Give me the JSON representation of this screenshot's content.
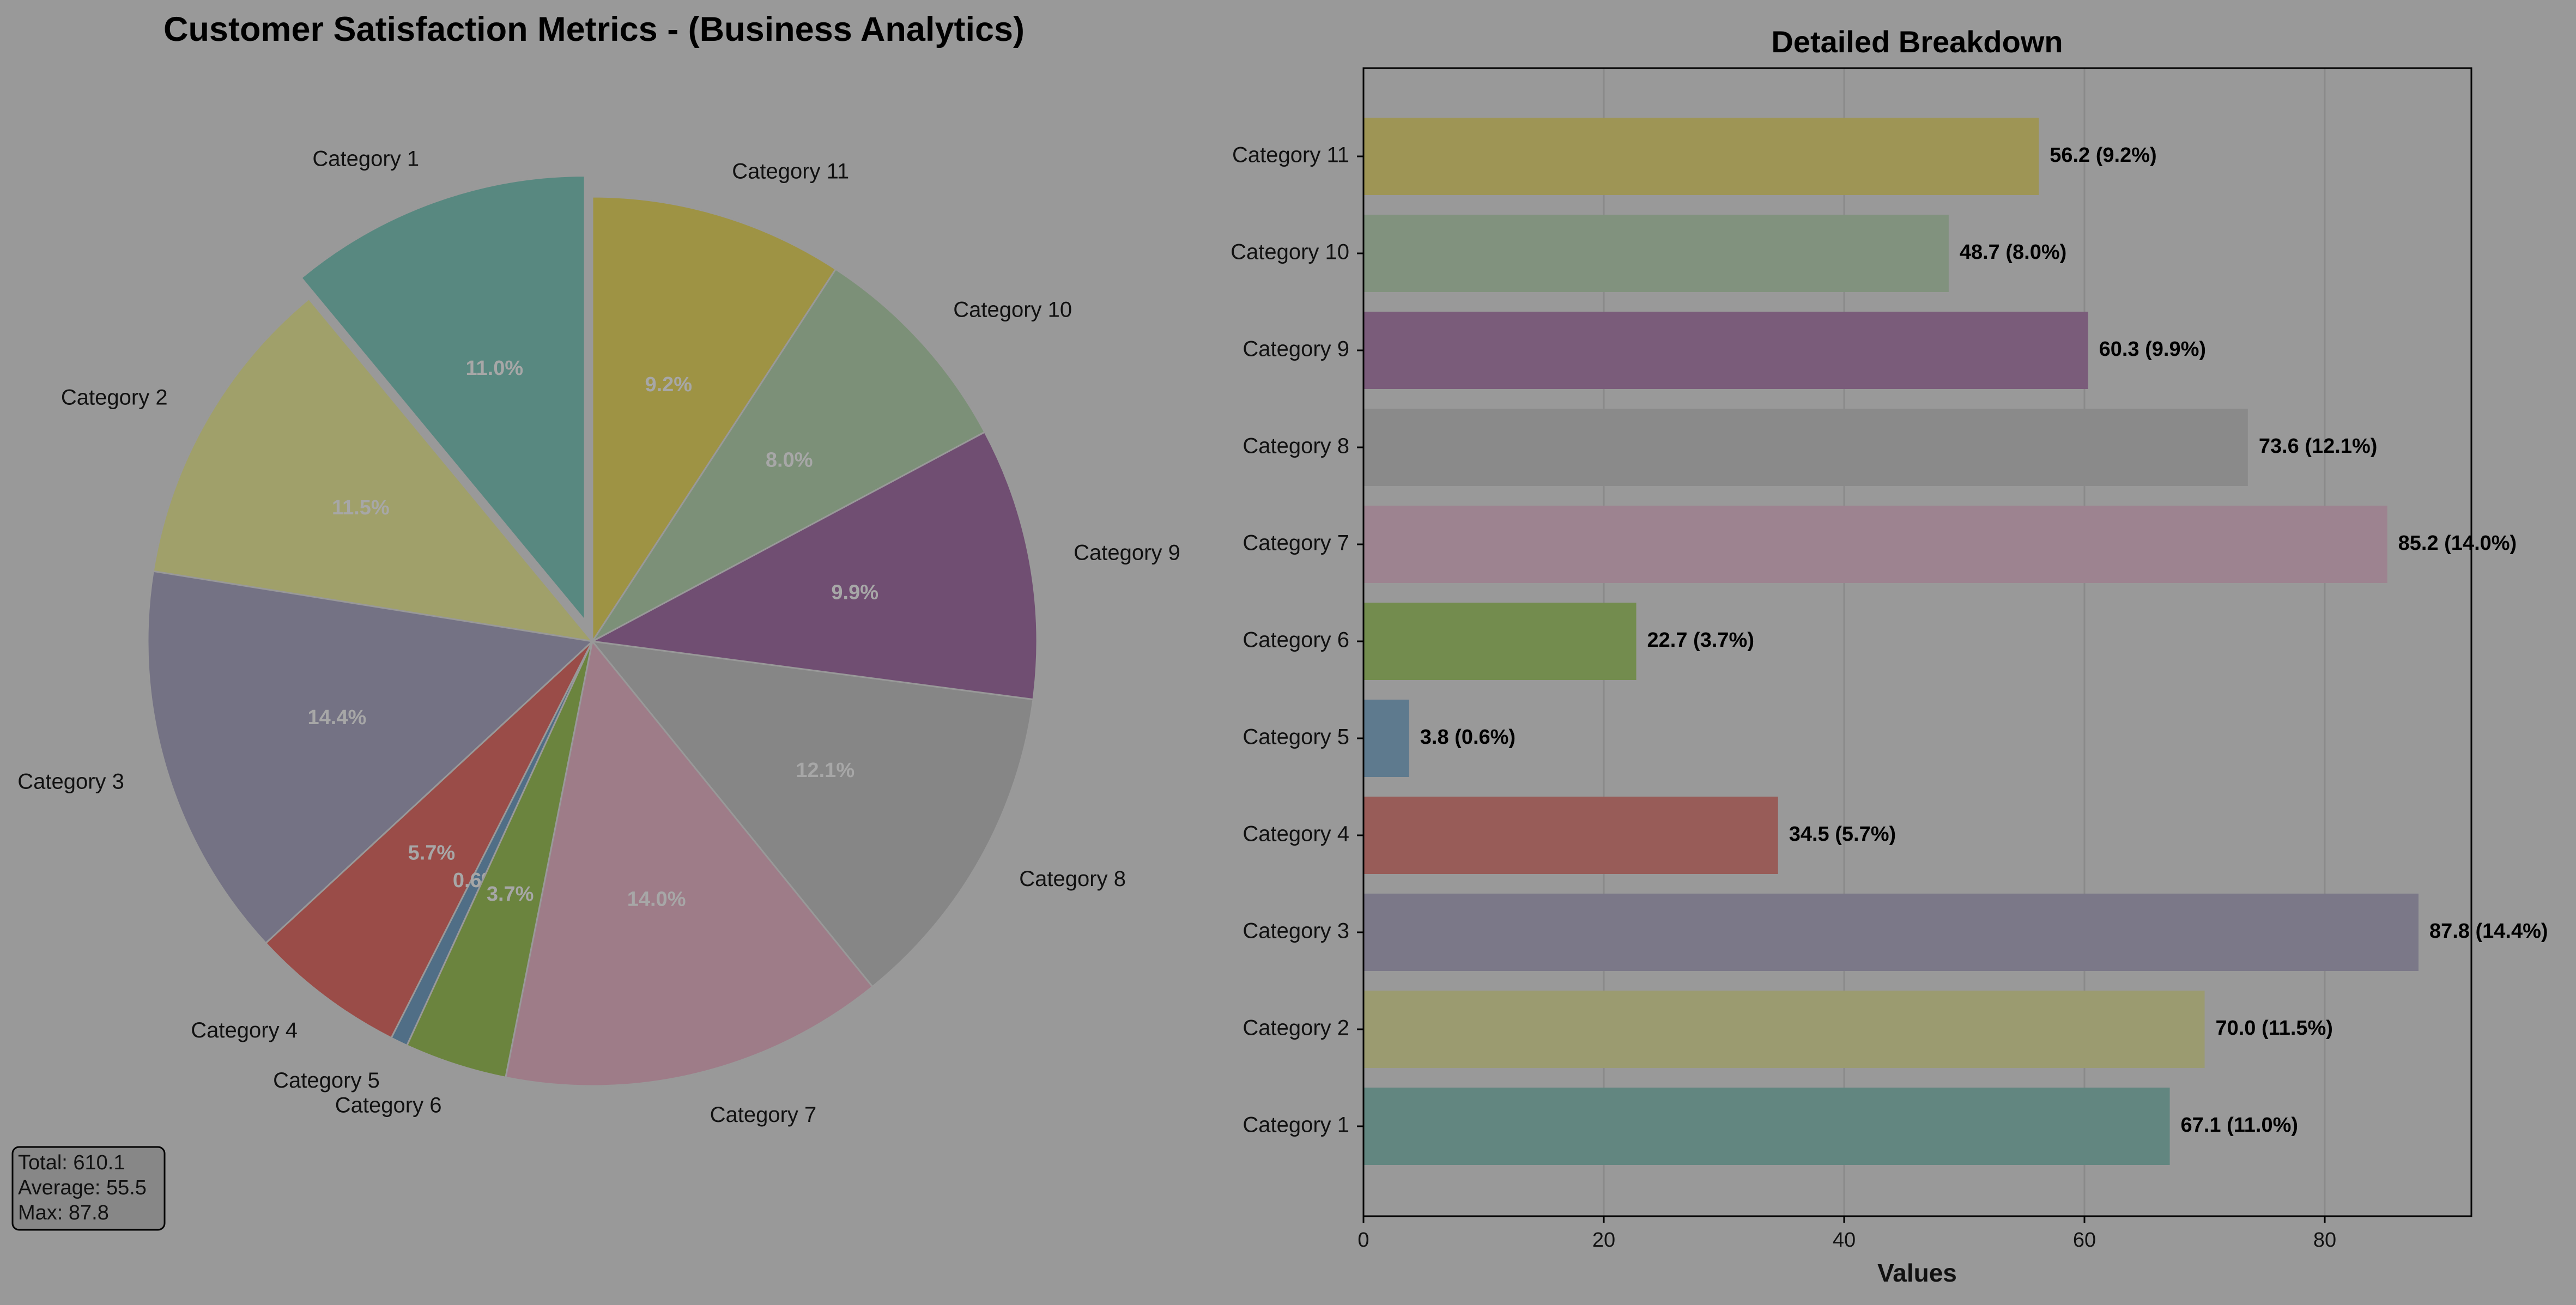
{
  "chart_data": [
    {
      "type": "pie",
      "title": "Customer Satisfaction Metrics - (Business Analytics)",
      "categories": [
        "Category 1",
        "Category 2",
        "Category 3",
        "Category 4",
        "Category 5",
        "Category 6",
        "Category 7",
        "Category 8",
        "Category 9",
        "Category 10",
        "Category 11"
      ],
      "values": [
        67.1,
        70.0,
        87.8,
        34.5,
        3.8,
        22.7,
        85.2,
        73.6,
        60.3,
        48.7,
        56.2
      ],
      "percent_labels": [
        "11.0%",
        "11.5%",
        "14.4%",
        "5.7%",
        "0.6%",
        "3.7%",
        "14.0%",
        "12.1%",
        "9.9%",
        "8.0%",
        "9.2%"
      ],
      "colors": [
        "#588880",
        "#a0a06a",
        "#747284",
        "#9a4c48",
        "#506e86",
        "#6b843e",
        "#9e7c88",
        "#868686",
        "#704e72",
        "#7c9078",
        "#9e9344"
      ],
      "start_angle_deg": 90,
      "direction": "counterclockwise",
      "exploded": [
        "Category 1"
      ],
      "stats_box": [
        "Total: 610.1",
        "Average: 55.5",
        "Max: 87.8"
      ]
    },
    {
      "type": "bar",
      "orientation": "horizontal",
      "title": "Detailed Breakdown",
      "categories": [
        "Category 1",
        "Category 2",
        "Category 3",
        "Category 4",
        "Category 5",
        "Category 6",
        "Category 7",
        "Category 8",
        "Category 9",
        "Category 10",
        "Category 11"
      ],
      "values": [
        67.1,
        70.0,
        87.8,
        34.5,
        3.8,
        22.7,
        85.2,
        73.6,
        60.3,
        48.7,
        56.2
      ],
      "value_labels": [
        "67.1 (11.0%)",
        "70.0 (11.5%)",
        "87.8 (14.4%)",
        "34.5 (5.7%)",
        "3.8 (0.6%)",
        "22.7 (3.7%)",
        "85.2 (14.0%)",
        "73.6 (12.1%)",
        "60.3 (9.9%)",
        "48.7 (8.0%)",
        "56.2 (9.2%)"
      ],
      "colors": [
        "#628680",
        "#9b9b70",
        "#7b7888",
        "#985c58",
        "#5e7a8e",
        "#738c4e",
        "#9d8390",
        "#8a8a8a",
        "#7a5c7a",
        "#81927e",
        "#9e9555"
      ],
      "xlabel": "Values",
      "ylabel": "",
      "xlim": [
        0,
        92.2
      ],
      "xticks": [
        0,
        20,
        40,
        60,
        80
      ],
      "grid": "x"
    }
  ]
}
